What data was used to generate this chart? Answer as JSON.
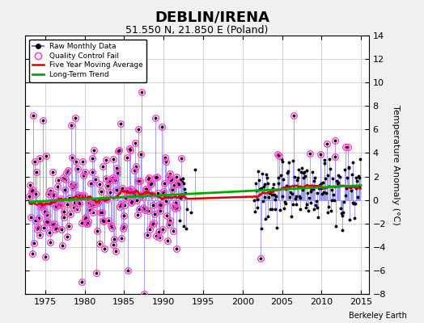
{
  "title": "DEBLIN/IRENA",
  "subtitle": "51.550 N, 21.850 E (Poland)",
  "ylabel": "Temperature Anomaly (°C)",
  "credit": "Berkeley Earth",
  "year_start": 1973.0,
  "year_end": 2015.0,
  "ylim": [
    -8,
    14
  ],
  "yticks": [
    -8,
    -6,
    -4,
    -2,
    0,
    2,
    4,
    6,
    8,
    10,
    12,
    14
  ],
  "xticks": [
    1975,
    1980,
    1985,
    1990,
    1995,
    2000,
    2005,
    2010,
    2015
  ],
  "xlim": [
    1972.5,
    2016
  ],
  "bg_color": "#f0f0f0",
  "plot_bg_color": "#ffffff",
  "grid_color": "#cccccc",
  "stem_color": "#8888ff",
  "dot_color": "#000000",
  "ma_color": "#dd0000",
  "trend_color": "#00aa00",
  "qc_color": "#ff44cc",
  "title_fontsize": 13,
  "subtitle_fontsize": 9,
  "tick_fontsize": 8
}
